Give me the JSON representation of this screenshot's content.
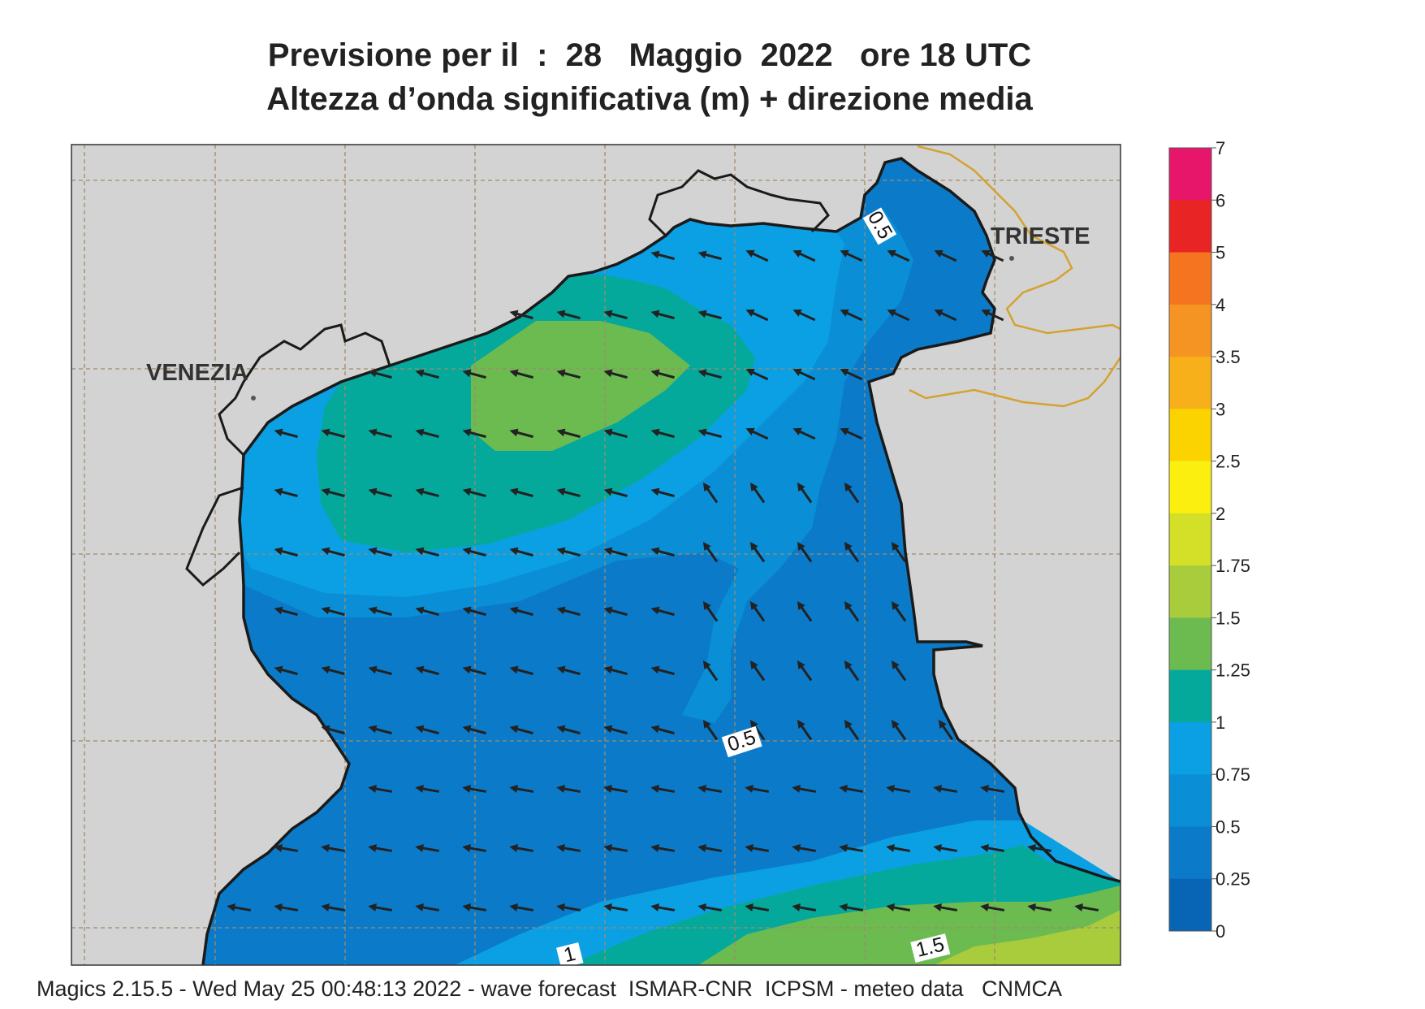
{
  "title": {
    "line1": "Previsione per il  :  28   Maggio  2022   ore 18 UTC",
    "line2": "Altezza d’onda significativa (m) + direzione media"
  },
  "cities": {
    "venezia": "VENEZIA",
    "trieste": "TRIESTE"
  },
  "contour_labels": {
    "a": "0.5",
    "b": "0.5",
    "c": "1",
    "d": "1.5"
  },
  "colorbar": {
    "labels": [
      "7",
      "6",
      "5",
      "4",
      "3.5",
      "3",
      "2.5",
      "2",
      "1.75",
      "1.5",
      "1.25",
      "1",
      "0.75",
      "0.5",
      "0.25",
      "0"
    ],
    "colors": [
      "#e8166a",
      "#e82424",
      "#f47420",
      "#f59422",
      "#f7b019",
      "#fad300",
      "#fbef10",
      "#d4df27",
      "#a9cc3c",
      "#6cbb51",
      "#05a99c",
      "#0ba0e3",
      "#0a8fd6",
      "#0b7bc9",
      "#0864b5"
    ]
  },
  "legend_colors": {
    "land": "#d3d3d3",
    "coast": "#1a1a1a",
    "border": "#d4a230",
    "grid": "#a08a6a",
    "arrow": "#222222"
  },
  "footer": "Magics 2.15.5 - Wed May 25 00:48:13 2022 - wave forecast  ISMAR-CNR  ICPSM - meteo data   CNMCA"
}
